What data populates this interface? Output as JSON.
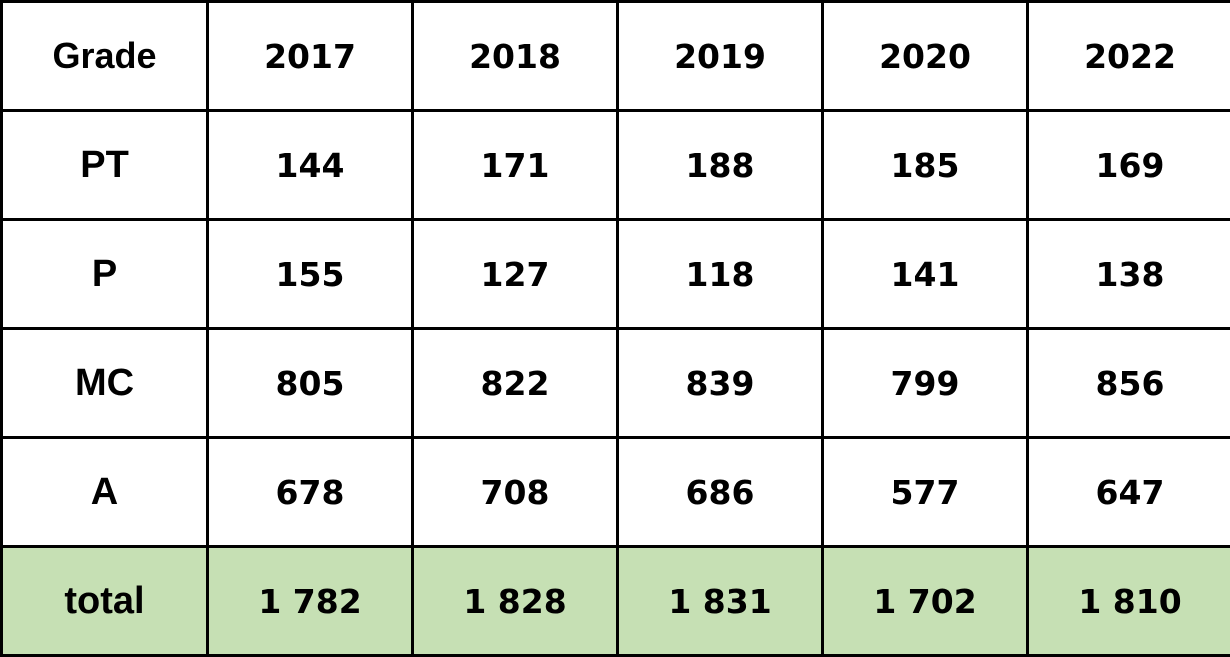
{
  "chart_data": {
    "type": "table",
    "columns": [
      "Grade",
      "2017",
      "2018",
      "2019",
      "2020",
      "2022"
    ],
    "rows": [
      {
        "label": "PT",
        "values": [
          "144",
          "171",
          "188",
          "185",
          "169"
        ]
      },
      {
        "label": "P",
        "values": [
          "155",
          "127",
          "118",
          "141",
          "138"
        ]
      },
      {
        "label": "MC",
        "values": [
          "805",
          "822",
          "839",
          "799",
          "856"
        ]
      },
      {
        "label": "A",
        "values": [
          "678",
          "708",
          "686",
          "577",
          "647"
        ]
      },
      {
        "label": "total",
        "values": [
          "1 782",
          "1 828",
          "1 831",
          "1 702",
          "1 810"
        ]
      }
    ],
    "highlight_row": "total",
    "highlight_color": "#c6e0b4",
    "border_color": "#000000"
  }
}
